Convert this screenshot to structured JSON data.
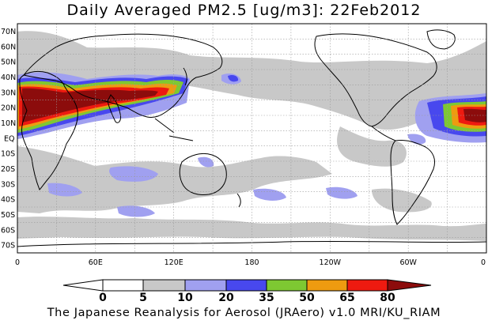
{
  "title": "Daily Averaged PM2.5 [ug/m3]: 22Feb2012",
  "footer": "The Japanese Reanalysis for Aerosol (JRAero) v1.0 MRI/KU_RIAM",
  "map": {
    "lat_labels": [
      "70N",
      "60N",
      "50N",
      "40N",
      "30N",
      "20N",
      "10N",
      "EQ",
      "10S",
      "20S",
      "30S",
      "40S",
      "50S",
      "60S",
      "70S"
    ],
    "lon_labels": [
      "0",
      "60E",
      "120E",
      "180",
      "120W",
      "60W",
      "0"
    ],
    "extent": {
      "lon": [
        0,
        360
      ],
      "lat": [
        -75,
        75
      ]
    }
  },
  "colorbar": {
    "labels": [
      "0",
      "5",
      "10",
      "20",
      "35",
      "50",
      "65",
      "80"
    ],
    "colors": [
      "#ffffff",
      "#c8c8c8",
      "#a0a0f0",
      "#4848ee",
      "#7ec832",
      "#ee9b10",
      "#ee1a10",
      "#8c0c0c"
    ]
  }
}
